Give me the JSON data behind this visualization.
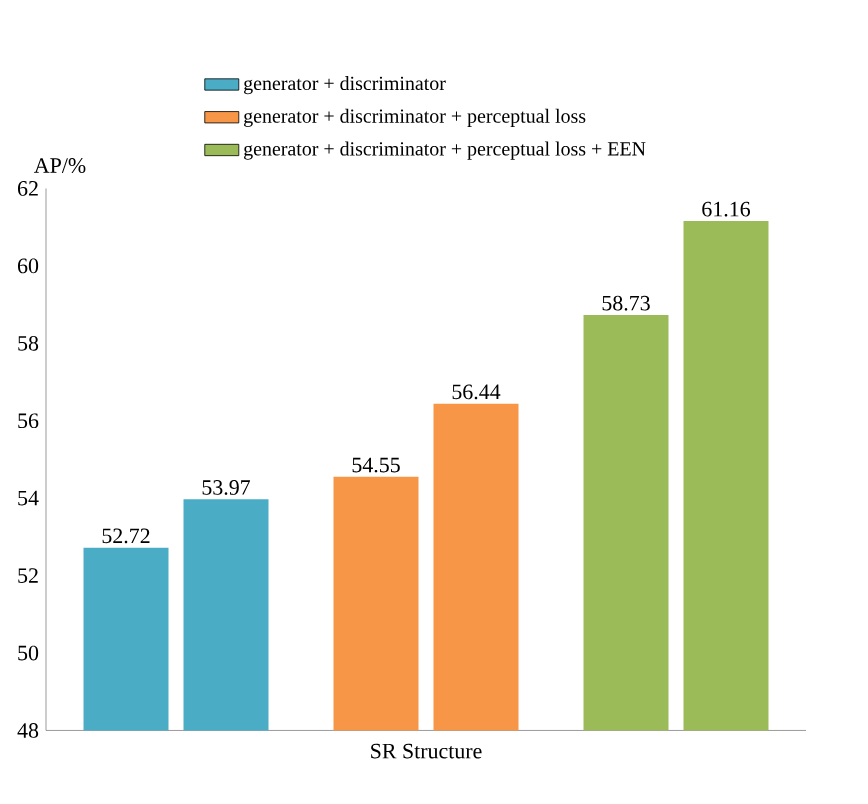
{
  "chart_data": {
    "type": "bar",
    "xlabel": "SR Structure",
    "ylabel": "AP/%",
    "categories": [
      null,
      null,
      null,
      null,
      null,
      null
    ],
    "series": [
      {
        "name": "generator + discriminator",
        "color": "#4bacc6",
        "values": [
          52.72,
          53.97,
          null,
          null,
          null,
          null
        ]
      },
      {
        "name": "generator + discriminator + perceptual loss",
        "color": "#f79646",
        "values": [
          null,
          null,
          54.55,
          56.44,
          null,
          null
        ]
      },
      {
        "name": "generator + discriminator + perceptual loss + EEN",
        "color": "#9bbb59",
        "values": [
          null,
          null,
          null,
          null,
          58.73,
          61.16
        ]
      }
    ],
    "ylim": [
      48,
      62
    ],
    "yticks": [
      48,
      50,
      52,
      54,
      56,
      58,
      60,
      62
    ],
    "grid": false,
    "legend": "top",
    "data_labels": true
  }
}
